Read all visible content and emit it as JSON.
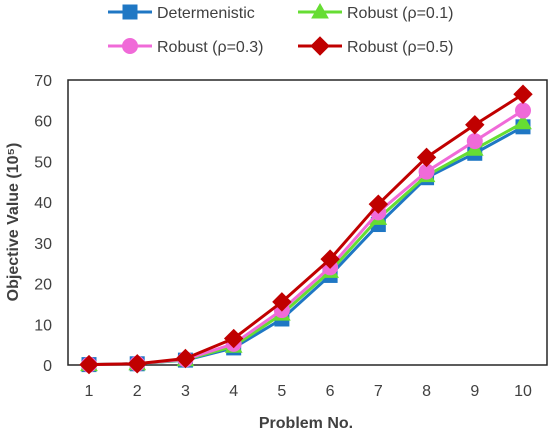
{
  "chart_data": {
    "type": "line",
    "title": "",
    "xlabel": "Problem No.",
    "ylabel": "Objective Value (10⁵)",
    "categories": [
      "1",
      "2",
      "3",
      "4",
      "5",
      "6",
      "7",
      "8",
      "9",
      "10"
    ],
    "ylim": [
      0,
      70
    ],
    "yticks": [
      "0",
      "10",
      "20",
      "30",
      "40",
      "50",
      "60",
      "70"
    ],
    "grid": false,
    "legend_position": "top",
    "series": [
      {
        "name": "Determenistic",
        "marker": "square",
        "color": "#1f77c4",
        "values": [
          0.1,
          0.3,
          1.2,
          4.2,
          11.3,
          22.0,
          34.5,
          46.0,
          52.0,
          58.5
        ]
      },
      {
        "name": "Robust (ρ=0.1)",
        "marker": "triangle",
        "color": "#66dd33",
        "values": [
          0.1,
          0.3,
          1.3,
          4.6,
          12.5,
          23.0,
          36.0,
          46.5,
          53.0,
          59.5
        ]
      },
      {
        "name": "Robust (ρ=0.3)",
        "marker": "circle",
        "color": "#f06ad8",
        "values": [
          0.1,
          0.3,
          1.4,
          5.2,
          13.5,
          24.0,
          37.5,
          47.5,
          55.0,
          62.5
        ]
      },
      {
        "name": "Robust (ρ=0.5)",
        "marker": "diamond",
        "color": "#c00000",
        "values": [
          0.1,
          0.3,
          1.6,
          6.5,
          15.5,
          26.0,
          39.5,
          51.0,
          59.0,
          66.5
        ]
      }
    ]
  }
}
